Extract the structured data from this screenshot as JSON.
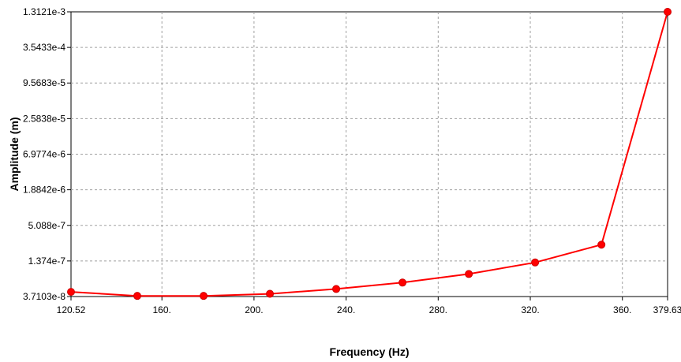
{
  "chart_data": {
    "type": "line",
    "xlabel": "Frequency (Hz)",
    "ylabel": "Amplitude (m)",
    "y_scale": "log",
    "xlim": [
      120.52,
      379.63
    ],
    "ylim": [
      3.7103e-08,
      0.0013121
    ],
    "x_ticks": [
      {
        "value": 120.52,
        "label": "120.52"
      },
      {
        "value": 160,
        "label": "160."
      },
      {
        "value": 200,
        "label": "200."
      },
      {
        "value": 240,
        "label": "240."
      },
      {
        "value": 280,
        "label": "280."
      },
      {
        "value": 320,
        "label": "320."
      },
      {
        "value": 360,
        "label": "360."
      },
      {
        "value": 379.63,
        "label": "379.63"
      }
    ],
    "y_ticks": [
      {
        "value": 3.7103e-08,
        "label": "3.7103e-8"
      },
      {
        "value": 1.374e-07,
        "label": "1.374e-7"
      },
      {
        "value": 5.088e-07,
        "label": "5.088e-7"
      },
      {
        "value": 1.8842e-06,
        "label": "1.8842e-6"
      },
      {
        "value": 6.9774e-06,
        "label": "6.9774e-6"
      },
      {
        "value": 2.5838e-05,
        "label": "2.5838e-5"
      },
      {
        "value": 9.5683e-05,
        "label": "9.5683e-5"
      },
      {
        "value": 0.00035433,
        "label": "3.5433e-4"
      },
      {
        "value": 0.0013121,
        "label": "1.3121e-3"
      }
    ],
    "grid": true,
    "color": "#ff0000",
    "series": [
      {
        "x": [
          120.52,
          149.3,
          178.1,
          206.9,
          235.7,
          264.5,
          293.3,
          322.1,
          350.9,
          379.63
        ],
        "y": [
          4.4e-08,
          3.8e-08,
          3.8e-08,
          4.1e-08,
          4.9e-08,
          6.2e-08,
          8.5e-08,
          1.3e-07,
          2.5e-07,
          0.0013121
        ]
      }
    ]
  }
}
